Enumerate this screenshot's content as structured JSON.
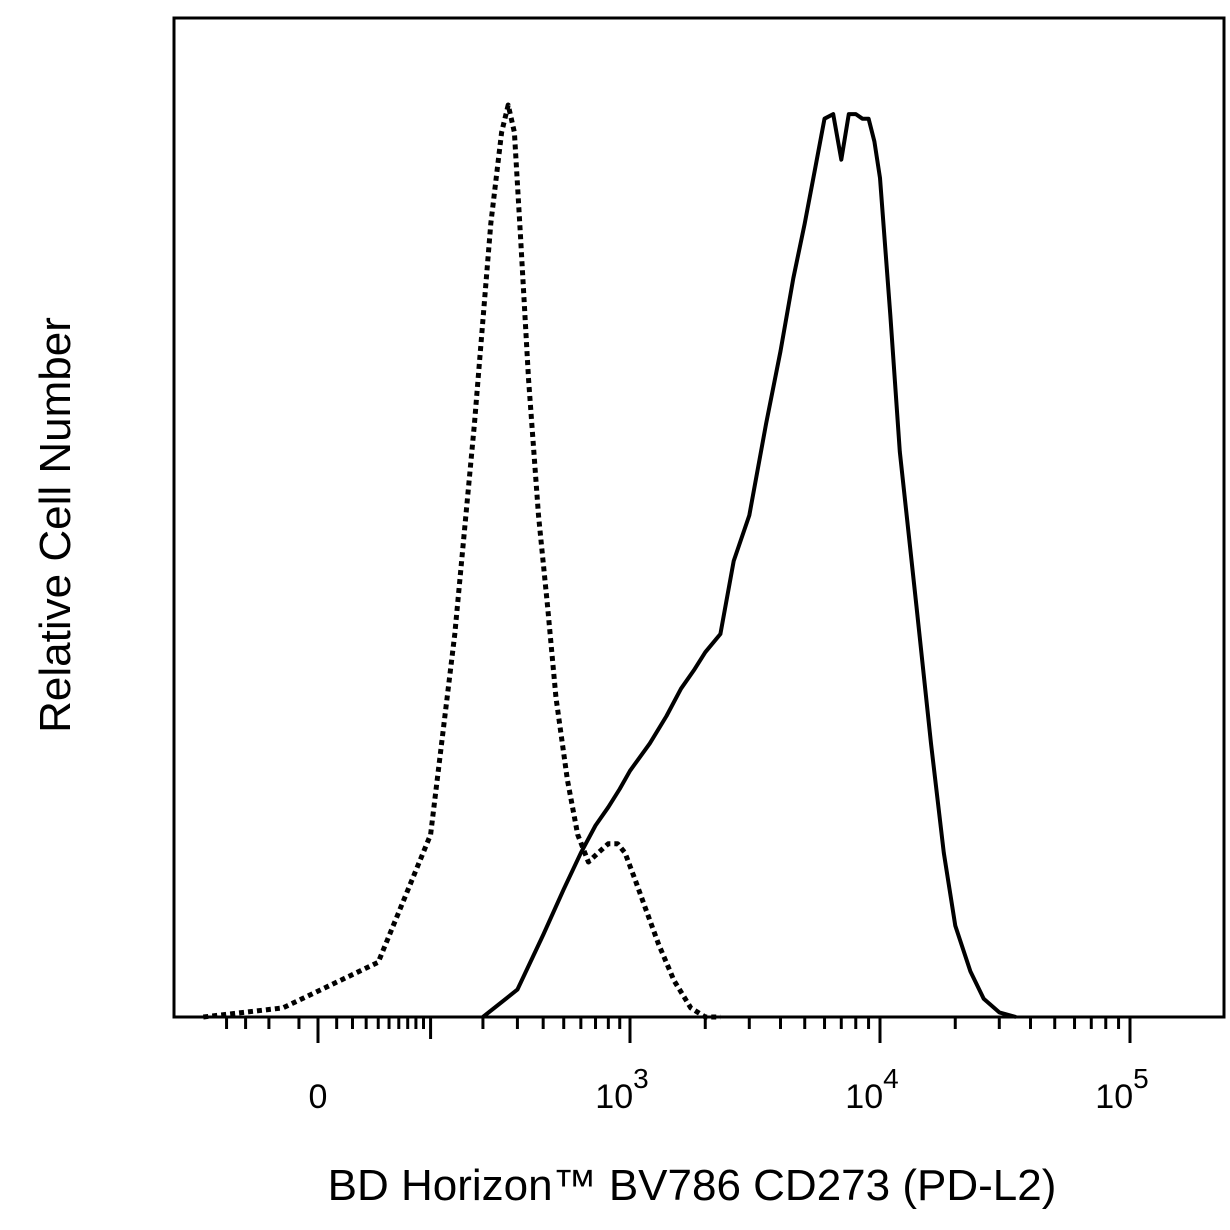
{
  "chart_data": {
    "type": "line",
    "title": "",
    "xlabel": "BD Horizon™ BV786 CD273 (PD-L2)",
    "ylabel": "Relative Cell Number",
    "x_scale": "biexponential",
    "x_ticks": [
      {
        "value": 0,
        "base": "0",
        "exp": ""
      },
      {
        "value": 1000,
        "base": "10",
        "exp": "3"
      },
      {
        "value": 10000,
        "base": "10",
        "exp": "4"
      },
      {
        "value": 100000,
        "base": "10",
        "exp": "5"
      }
    ],
    "ylim": [
      0,
      1
    ],
    "grid": false,
    "legend": "none",
    "series": [
      {
        "style": "dotted",
        "color": "#000000",
        "x": [
          -100,
          -20,
          40,
          100,
          140,
          180,
          220,
          250,
          270,
          290,
          310,
          340,
          380,
          420,
          460,
          520,
          580,
          650,
          720,
          800,
          880,
          950,
          1050,
          1150,
          1300,
          1500,
          1750,
          2000,
          2300
        ],
        "y": [
          0,
          0.01,
          0.06,
          0.2,
          0.42,
          0.65,
          0.87,
          0.97,
          1.0,
          0.97,
          0.86,
          0.7,
          0.55,
          0.45,
          0.35,
          0.26,
          0.2,
          0.17,
          0.18,
          0.19,
          0.19,
          0.18,
          0.15,
          0.12,
          0.08,
          0.04,
          0.01,
          0.0,
          0.0
        ]
      },
      {
        "style": "solid",
        "color": "#000000",
        "x": [
          200,
          300,
          400,
          500,
          600,
          700,
          800,
          900,
          1000,
          1200,
          1400,
          1600,
          1800,
          2000,
          2300,
          2600,
          3000,
          3500,
          4000,
          4500,
          5000,
          5500,
          6000,
          6500,
          7000,
          7500,
          8000,
          8500,
          9000,
          9500,
          10000,
          11000,
          12000,
          14000,
          16000,
          18000,
          20000,
          23000,
          26000,
          30000,
          35000
        ],
        "y": [
          0,
          0.03,
          0.09,
          0.14,
          0.18,
          0.21,
          0.23,
          0.25,
          0.27,
          0.3,
          0.33,
          0.36,
          0.38,
          0.4,
          0.42,
          0.5,
          0.55,
          0.65,
          0.73,
          0.81,
          0.87,
          0.93,
          0.985,
          0.99,
          0.94,
          0.99,
          0.99,
          0.985,
          0.985,
          0.96,
          0.92,
          0.77,
          0.62,
          0.45,
          0.3,
          0.18,
          0.1,
          0.05,
          0.02,
          0.005,
          0.0
        ]
      }
    ]
  }
}
